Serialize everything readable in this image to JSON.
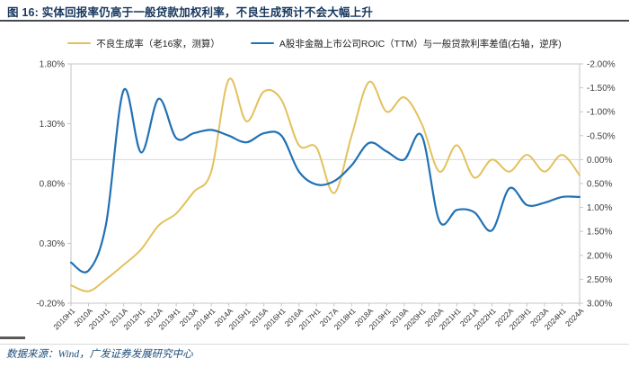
{
  "figure": {
    "title": "图 16:  实体回报率仍高于一般贷款加权利率，不良生成预计不会大幅上升"
  },
  "footer": {
    "source": "数据来源：Wind，广发证券发展研究中心"
  },
  "chart_data": {
    "type": "line",
    "title": "",
    "categories": [
      "2010H1",
      "2010A",
      "2011H1",
      "2011A",
      "2012H1",
      "2012A",
      "2013H1",
      "2013A",
      "2014H1",
      "2014A",
      "2015H1",
      "2015A",
      "2016H1",
      "2016A",
      "2017H1",
      "2017A",
      "2018H1",
      "2018A",
      "2019H1",
      "2019A",
      "2020H1",
      "2020A",
      "2021H1",
      "2021A",
      "2022H1",
      "2022A",
      "2023H1",
      "2023A",
      "2024H1",
      "2024A"
    ],
    "series": [
      {
        "name": "不良生成率（老16家，测算）",
        "axis": "left",
        "color": "#E3C15C",
        "values": [
          -0.05,
          -0.1,
          0.0,
          0.12,
          0.25,
          0.45,
          0.55,
          0.73,
          0.9,
          1.67,
          1.32,
          1.57,
          1.5,
          1.12,
          1.1,
          0.72,
          1.2,
          1.65,
          1.4,
          1.52,
          1.3,
          0.9,
          1.12,
          0.85,
          1.0,
          0.9,
          1.04,
          0.9,
          1.04,
          0.87
        ]
      },
      {
        "name": "A股非金融上市公司ROIC（TTM）与一般贷款利率差值(右轴，逆序)",
        "axis": "right",
        "color": "#2171B5",
        "values": [
          2.15,
          2.32,
          1.35,
          -1.45,
          -0.15,
          -1.27,
          -0.45,
          -0.55,
          -0.62,
          -0.5,
          -0.36,
          -0.55,
          -0.5,
          0.25,
          0.52,
          0.45,
          0.12,
          -0.35,
          -0.17,
          0.0,
          -0.5,
          1.28,
          1.05,
          1.1,
          1.48,
          0.6,
          0.95,
          0.9,
          0.78,
          0.78
        ]
      }
    ],
    "left_axis": {
      "min": -0.2,
      "max": 1.8,
      "ticks": [
        "1.80%",
        "1.30%",
        "0.80%",
        "0.30%",
        "-0.20%"
      ]
    },
    "right_axis": {
      "min": -2.0,
      "max": 3.0,
      "inverted": true,
      "ticks": [
        "-2.00%",
        "-1.50%",
        "-1.00%",
        "-0.50%",
        "0.00%",
        "0.50%",
        "1.00%",
        "1.50%",
        "2.00%",
        "2.50%",
        "3.00%"
      ]
    },
    "grid": {
      "horizontal_line_at_right_value": 0.0,
      "color": "#d9d9d9"
    },
    "plot_border_color": "#c6c6c6",
    "tick_label_color": "#404040",
    "x_label_color": "#333333"
  }
}
